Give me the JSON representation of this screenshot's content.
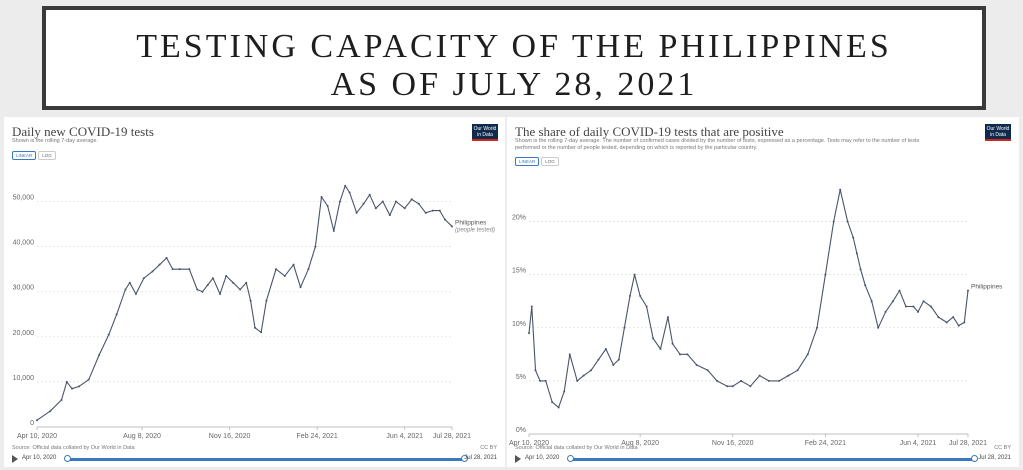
{
  "banner": {
    "line1": "TESTING CAPACITY OF THE PHILIPPINES",
    "line2": "AS OF JULY 28, 2021"
  },
  "charts": {
    "left": {
      "subtitle": "Shown is the rolling 7-day average.",
      "logo": "Our World in Data",
      "toggle": [
        "LINEAR",
        "LOG"
      ],
      "source": "Source: Official data collated by Our World in Data",
      "license": "CC BY",
      "timeline": {
        "start": "Apr 10, 2020",
        "end": "Jul 28, 2021"
      }
    },
    "right": {
      "subtitle": "Shown is the rolling 7-day average. The number of confirmed cases divided by the number of tests, expressed as a percentage. Tests may refer to the number of tests performed or the number of people tested, depending on which is reported by the particular country.",
      "logo": "Our World in Data",
      "toggle": [
        "LINEAR",
        "LOG"
      ],
      "source": "Source: Official data collated by Our World in Data",
      "license": "CC BY",
      "timeline": {
        "start": "Apr 10, 2020",
        "end": "Jul 28, 2021"
      }
    }
  },
  "colors": {
    "line": "#4a5569",
    "grid": "#dddddd",
    "accent": "#3b78c2"
  },
  "chart_data": [
    {
      "type": "line",
      "title": "Daily new COVID-19 tests",
      "xlabel": "",
      "ylabel": "",
      "x_range": [
        "2020-04-10",
        "2021-07-28"
      ],
      "ylim": [
        0,
        55000
      ],
      "y_ticks": [
        0,
        10000,
        20000,
        30000,
        40000,
        50000
      ],
      "y_tick_labels": [
        "0",
        "10,000",
        "20,000",
        "30,000",
        "40,000",
        "50,000"
      ],
      "x_ticks": [
        "2020-04-10",
        "2020-08-08",
        "2020-11-16",
        "2021-02-24",
        "2021-06-04",
        "2021-07-28"
      ],
      "x_tick_labels": [
        "Apr 10, 2020",
        "Aug 8, 2020",
        "Nov 16, 2020",
        "Feb 24, 2021",
        "Jun 4, 2021",
        "Jul 28, 2021"
      ],
      "grid": "horizontal",
      "series": [
        {
          "name": "Philippines",
          "annotation": "(people tested)",
          "x": [
            "2020-04-10",
            "2020-04-25",
            "2020-05-08",
            "2020-05-14",
            "2020-05-20",
            "2020-05-28",
            "2020-06-08",
            "2020-06-20",
            "2020-07-01",
            "2020-07-10",
            "2020-07-20",
            "2020-07-25",
            "2020-08-01",
            "2020-08-10",
            "2020-08-20",
            "2020-08-28",
            "2020-09-05",
            "2020-09-12",
            "2020-09-20",
            "2020-10-01",
            "2020-10-10",
            "2020-10-16",
            "2020-10-22",
            "2020-10-28",
            "2020-11-05",
            "2020-11-12",
            "2020-11-20",
            "2020-11-28",
            "2020-12-05",
            "2020-12-10",
            "2020-12-15",
            "2020-12-22",
            "2020-12-28",
            "2021-01-08",
            "2021-01-18",
            "2021-01-28",
            "2021-02-05",
            "2021-02-14",
            "2021-02-22",
            "2021-03-01",
            "2021-03-08",
            "2021-03-15",
            "2021-03-22",
            "2021-03-28",
            "2021-04-02",
            "2021-04-10",
            "2021-04-18",
            "2021-04-25",
            "2021-05-02",
            "2021-05-10",
            "2021-05-18",
            "2021-05-25",
            "2021-06-04",
            "2021-06-12",
            "2021-06-20",
            "2021-06-28",
            "2021-07-06",
            "2021-07-14",
            "2021-07-20",
            "2021-07-28"
          ],
          "values": [
            1500,
            3500,
            6000,
            10000,
            8500,
            9000,
            10500,
            16000,
            20500,
            25000,
            30500,
            32000,
            29500,
            33000,
            34500,
            36000,
            37500,
            35000,
            35000,
            35000,
            30500,
            30000,
            31500,
            33000,
            29500,
            33500,
            32000,
            30500,
            32000,
            28000,
            22000,
            21000,
            28000,
            35000,
            33500,
            36000,
            31000,
            35000,
            40000,
            51000,
            49000,
            43500,
            50000,
            53500,
            52000,
            47500,
            49500,
            51500,
            48500,
            50000,
            47000,
            50000,
            48500,
            50500,
            49500,
            47500,
            48000,
            48000,
            46000,
            44500
          ]
        }
      ]
    },
    {
      "type": "line",
      "title": "The share of daily COVID-19 tests that are positive",
      "xlabel": "",
      "ylabel": "",
      "x_range": [
        "2020-04-10",
        "2021-07-28"
      ],
      "ylim": [
        0,
        24
      ],
      "y_ticks": [
        0,
        5,
        10,
        15,
        20
      ],
      "y_tick_labels": [
        "0%",
        "5%",
        "10%",
        "15%",
        "20%"
      ],
      "x_ticks": [
        "2020-04-10",
        "2020-08-08",
        "2020-11-16",
        "2021-02-24",
        "2021-06-04",
        "2021-07-28"
      ],
      "x_tick_labels": [
        "Apr 10, 2020",
        "Aug 8, 2020",
        "Nov 16, 2020",
        "Feb 24, 2021",
        "Jun 4, 2021",
        "Jul 28, 2021"
      ],
      "grid": "horizontal",
      "series": [
        {
          "name": "Philippines",
          "x": [
            "2020-04-10",
            "2020-04-13",
            "2020-04-17",
            "2020-04-22",
            "2020-04-28",
            "2020-05-05",
            "2020-05-12",
            "2020-05-18",
            "2020-05-24",
            "2020-06-01",
            "2020-06-08",
            "2020-06-16",
            "2020-06-24",
            "2020-07-02",
            "2020-07-10",
            "2020-07-16",
            "2020-07-22",
            "2020-07-28",
            "2020-08-02",
            "2020-08-08",
            "2020-08-15",
            "2020-08-22",
            "2020-08-30",
            "2020-09-07",
            "2020-09-12",
            "2020-09-20",
            "2020-09-28",
            "2020-10-08",
            "2020-10-20",
            "2020-10-30",
            "2020-11-10",
            "2020-11-16",
            "2020-11-25",
            "2020-12-05",
            "2020-12-15",
            "2020-12-25",
            "2021-01-05",
            "2021-01-15",
            "2021-01-25",
            "2021-02-05",
            "2021-02-15",
            "2021-02-24",
            "2021-03-05",
            "2021-03-12",
            "2021-03-20",
            "2021-03-26",
            "2021-03-30",
            "2021-04-03",
            "2021-04-08",
            "2021-04-15",
            "2021-04-22",
            "2021-04-30",
            "2021-05-08",
            "2021-05-15",
            "2021-05-22",
            "2021-05-30",
            "2021-06-04",
            "2021-06-10",
            "2021-06-18",
            "2021-06-26",
            "2021-07-05",
            "2021-07-12",
            "2021-07-18",
            "2021-07-24",
            "2021-07-28"
          ],
          "values": [
            9.5,
            12,
            6,
            5,
            5,
            3,
            2.5,
            4,
            7.5,
            5,
            5.5,
            6,
            7,
            8,
            6.5,
            7,
            10,
            13,
            15,
            13,
            12,
            9,
            8,
            11,
            8.5,
            7.5,
            7.5,
            6.5,
            6,
            5,
            4.5,
            4.5,
            5,
            4.5,
            5.5,
            5,
            5,
            5.5,
            6,
            7.5,
            10,
            15,
            20,
            23,
            20,
            18.5,
            17,
            15.5,
            14,
            12.5,
            10,
            11.5,
            12.5,
            13.5,
            12,
            12,
            11.5,
            12.5,
            12,
            11,
            10.5,
            11,
            10.2,
            10.5,
            13.5
          ]
        }
      ]
    }
  ]
}
